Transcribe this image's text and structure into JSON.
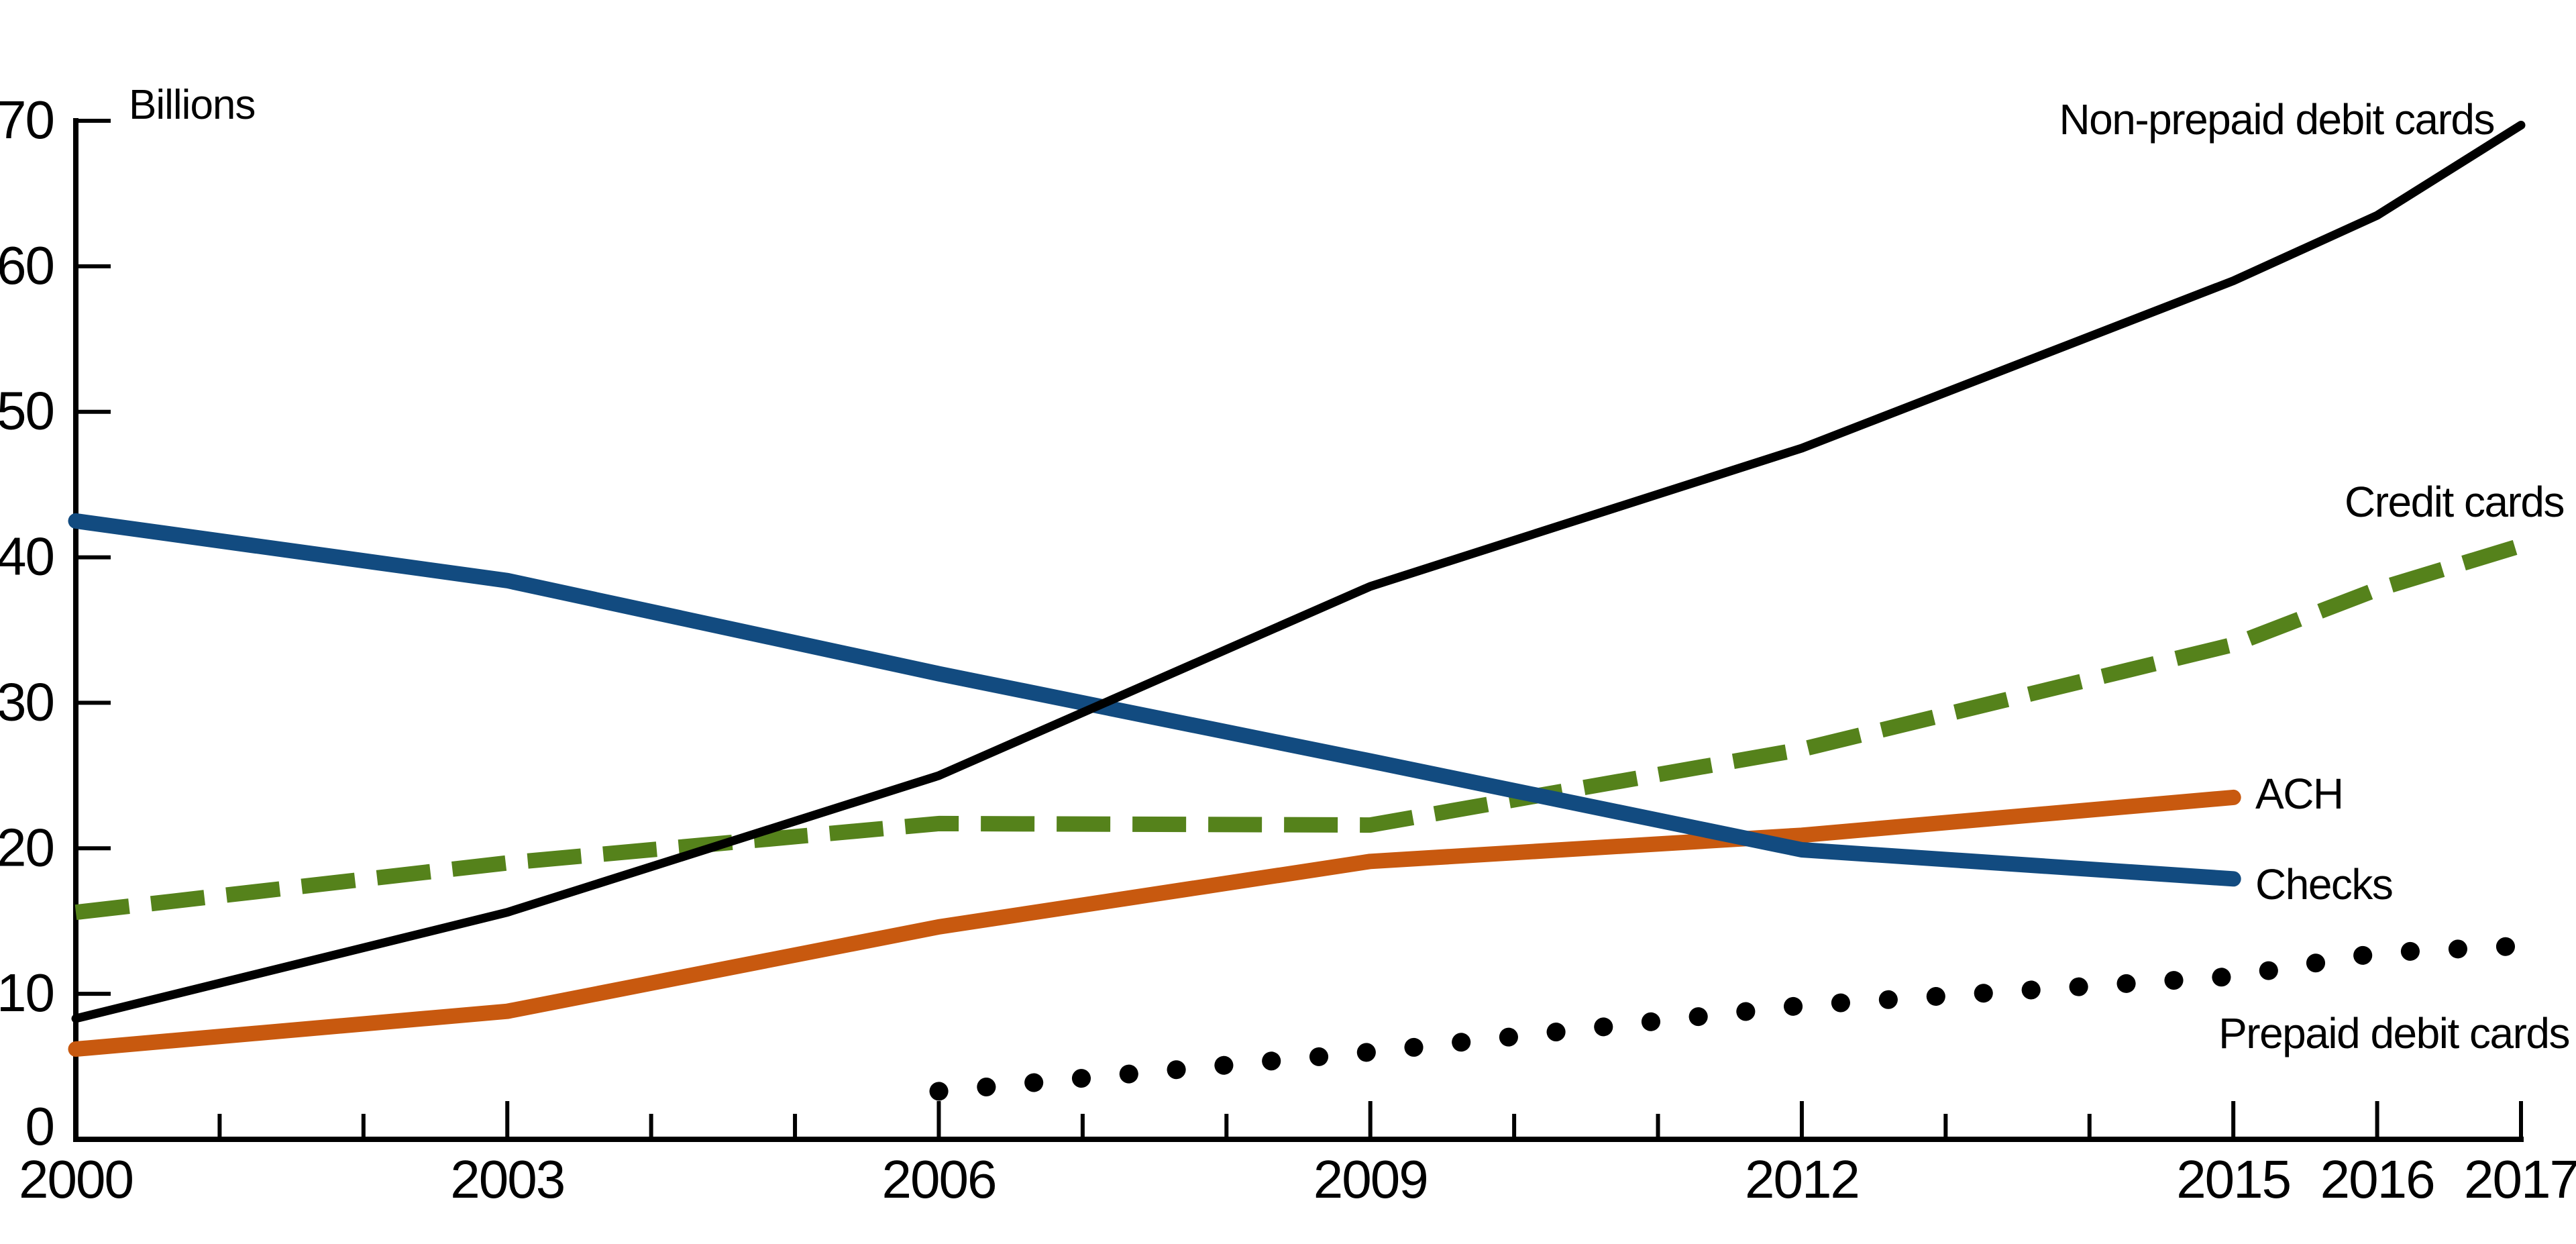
{
  "page": {
    "background_color": "#ffffff",
    "text_color": "#000000"
  },
  "chart_data": {
    "type": "line",
    "title": "",
    "unit_label": "Billions",
    "x_axis": {
      "min": 2000,
      "max": 2017,
      "labeled_ticks": [
        "2000",
        "2003",
        "2006",
        "2009",
        "2012",
        "2015",
        "2016",
        "2017"
      ],
      "minor_ticks": "every unlabeled year from 2001 through 2014"
    },
    "y_axis": {
      "min": 0,
      "max": 70,
      "tick_step": 10,
      "tick_labels": [
        "0",
        "10",
        "20",
        "30",
        "40",
        "50",
        "60",
        "70"
      ]
    },
    "grid": false,
    "legend_position": "inline labels at line ends",
    "series": [
      {
        "id": "debit",
        "name": "Non-prepaid debit cards",
        "color": "#000000",
        "line_style": "solid",
        "line_width": 13,
        "points": [
          [
            2000,
            8.3
          ],
          [
            2003,
            15.6
          ],
          [
            2006,
            25.0
          ],
          [
            2009,
            38.0
          ],
          [
            2012,
            47.5
          ],
          [
            2015,
            59.0
          ],
          [
            2016,
            63.5
          ],
          [
            2017,
            69.7
          ]
        ]
      },
      {
        "id": "credit",
        "name": "Credit cards",
        "color": "#55821b",
        "line_style": "dashed",
        "line_width": 23,
        "points": [
          [
            2000,
            15.6
          ],
          [
            2003,
            19.0
          ],
          [
            2006,
            21.7
          ],
          [
            2009,
            21.6
          ],
          [
            2012,
            26.8
          ],
          [
            2015,
            34.0
          ],
          [
            2016,
            37.8
          ],
          [
            2017,
            40.8
          ]
        ]
      },
      {
        "id": "ach",
        "name": "ACH",
        "color": "#c8590f",
        "line_style": "solid",
        "line_width": 23,
        "points": [
          [
            2000,
            6.2
          ],
          [
            2003,
            8.8
          ],
          [
            2006,
            14.6
          ],
          [
            2009,
            19.1
          ],
          [
            2012,
            20.9
          ],
          [
            2015,
            23.5
          ]
        ]
      },
      {
        "id": "checks",
        "name": "Checks",
        "color": "#124b80",
        "line_style": "solid",
        "line_width": 23,
        "points": [
          [
            2000,
            42.5
          ],
          [
            2003,
            38.4
          ],
          [
            2006,
            32.0
          ],
          [
            2009,
            26.0
          ],
          [
            2012,
            19.9
          ],
          [
            2015,
            17.9
          ]
        ]
      },
      {
        "id": "prepaid",
        "name": "Prepaid debit cards",
        "color": "#000000",
        "line_style": "dotted",
        "line_width": 28,
        "points": [
          [
            2006,
            3.3
          ],
          [
            2009,
            6.0
          ],
          [
            2012,
            9.2
          ],
          [
            2015,
            11.2
          ],
          [
            2016,
            12.8
          ],
          [
            2017,
            13.3
          ]
        ]
      }
    ]
  }
}
